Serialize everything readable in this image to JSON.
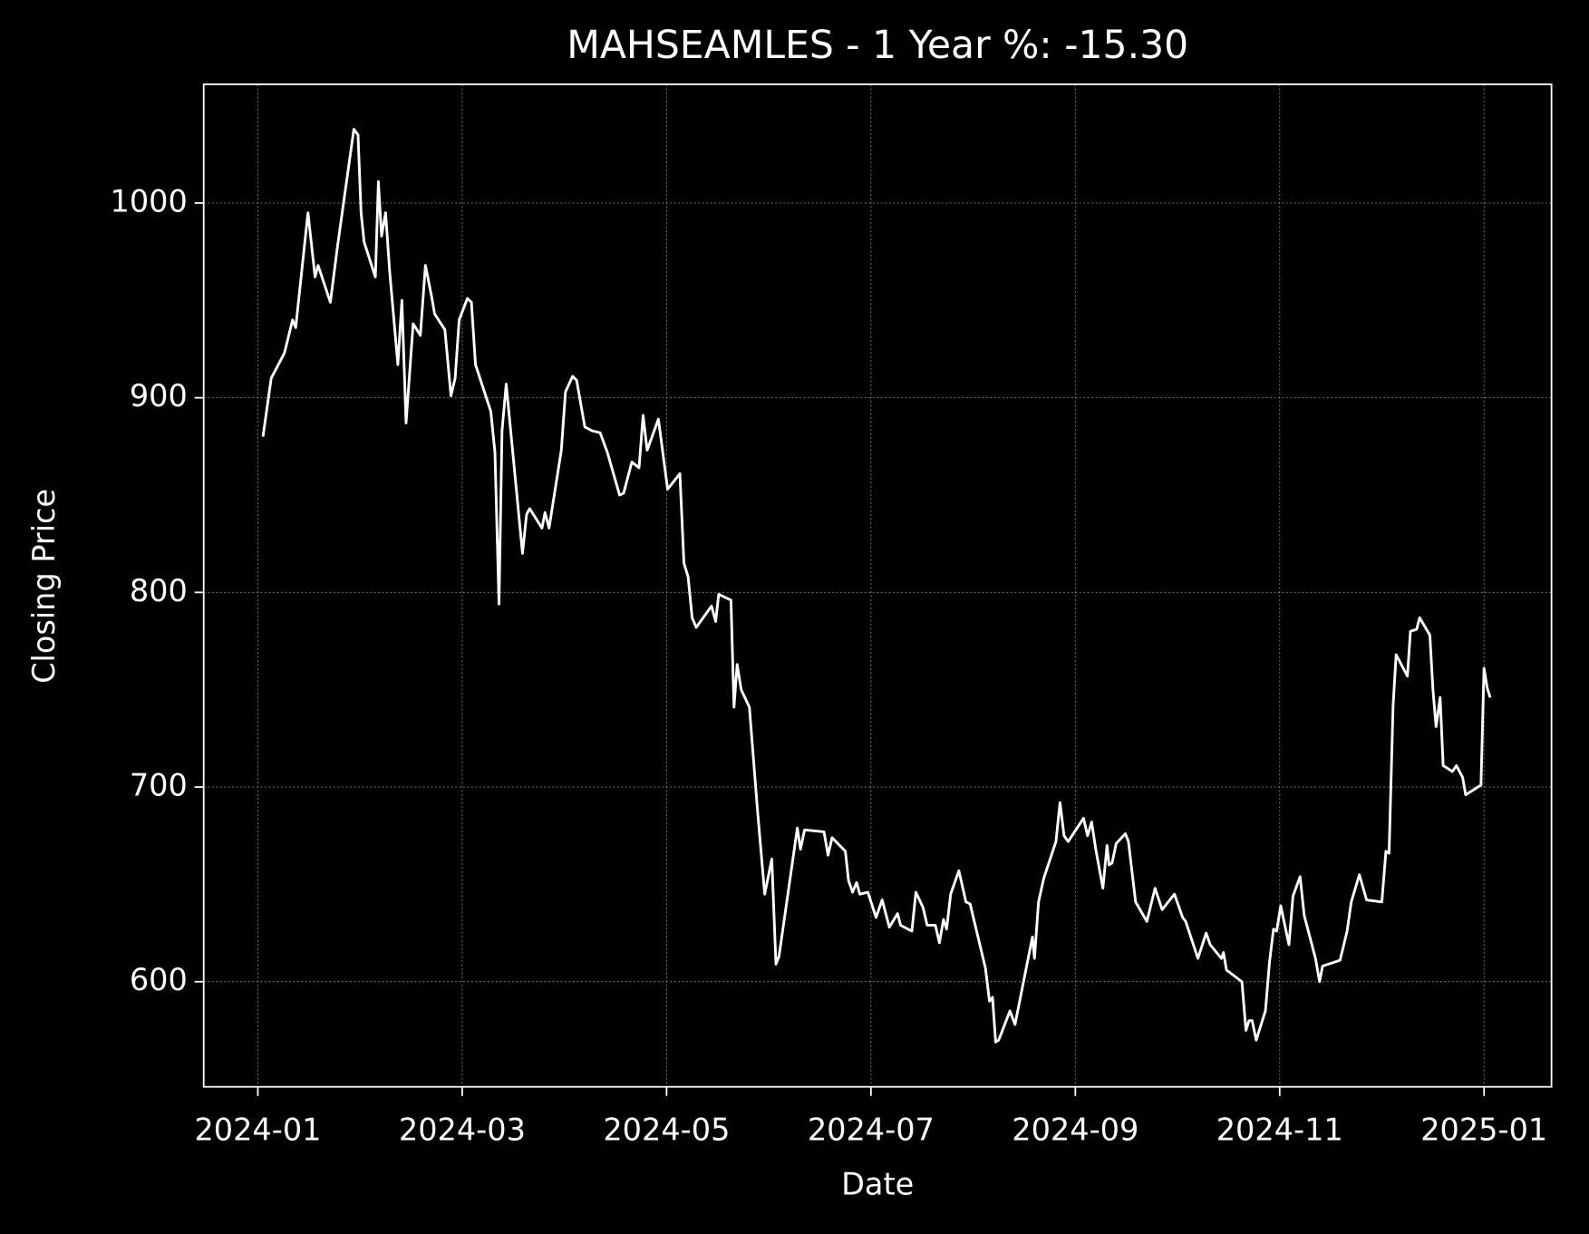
{
  "chart_data": {
    "type": "line",
    "title": "MAHSEAMLES - 1 Year %: -15.30",
    "x_label": "Date",
    "y_label": "Closing Price",
    "color": "#ffffff",
    "grid": true,
    "xlim": [
      -0.53,
      12.66
    ],
    "ylim": [
      546,
      1061
    ],
    "xticks": [
      {
        "value": 0,
        "label": "2024-01"
      },
      {
        "value": 2,
        "label": "2024-03"
      },
      {
        "value": 4,
        "label": "2024-05"
      },
      {
        "value": 6,
        "label": "2024-07"
      },
      {
        "value": 8,
        "label": "2024-09"
      },
      {
        "value": 10,
        "label": "2024-11"
      },
      {
        "value": 12,
        "label": "2025-01"
      }
    ],
    "yticks": [
      600,
      700,
      800,
      900,
      1000
    ],
    "x": [
      0.05,
      0.13,
      0.26,
      0.34,
      0.37,
      0.49,
      0.56,
      0.59,
      0.71,
      0.78,
      0.94,
      0.98,
      1.01,
      1.04,
      1.15,
      1.18,
      1.21,
      1.25,
      1.29,
      1.37,
      1.41,
      1.45,
      1.52,
      1.59,
      1.64,
      1.7,
      1.73,
      1.83,
      1.89,
      1.93,
      1.97,
      2.05,
      2.09,
      2.13,
      2.28,
      2.32,
      2.36,
      2.39,
      2.43,
      2.59,
      2.63,
      2.66,
      2.78,
      2.81,
      2.85,
      2.97,
      3.01,
      3.08,
      3.12,
      3.2,
      3.27,
      3.35,
      3.42,
      3.54,
      3.58,
      3.66,
      3.73,
      3.77,
      3.81,
      3.92,
      4.01,
      4.13,
      4.17,
      4.21,
      4.25,
      4.29,
      4.44,
      4.48,
      4.51,
      4.63,
      4.66,
      4.69,
      4.73,
      4.81,
      4.89,
      4.96,
      5.03,
      5.07,
      5.1,
      5.28,
      5.31,
      5.35,
      5.54,
      5.58,
      5.62,
      5.75,
      5.78,
      5.82,
      5.86,
      5.89,
      5.97,
      6.05,
      6.11,
      6.18,
      6.26,
      6.29,
      6.4,
      6.44,
      6.51,
      6.55,
      6.63,
      6.67,
      6.71,
      6.74,
      6.78,
      6.86,
      6.93,
      6.97,
      7.12,
      7.16,
      7.19,
      7.22,
      7.25,
      7.36,
      7.41,
      7.58,
      7.6,
      7.64,
      7.69,
      7.81,
      7.85,
      7.89,
      7.93,
      8.08,
      8.12,
      8.16,
      8.2,
      8.27,
      8.31,
      8.33,
      8.36,
      8.4,
      8.49,
      8.52,
      8.59,
      8.7,
      8.78,
      8.85,
      8.97,
      9.05,
      9.08,
      9.2,
      9.28,
      9.32,
      9.43,
      9.45,
      9.48,
      9.63,
      9.67,
      9.7,
      9.73,
      9.77,
      9.86,
      9.9,
      9.94,
      9.97,
      10.01,
      10.09,
      10.13,
      10.2,
      10.24,
      10.35,
      10.39,
      10.42,
      10.59,
      10.66,
      10.7,
      10.78,
      10.85,
      11.0,
      11.04,
      11.07,
      11.11,
      11.14,
      11.25,
      11.28,
      11.34,
      11.37,
      11.47,
      11.5,
      11.53,
      11.57,
      11.6,
      11.69,
      11.73,
      11.79,
      11.82,
      11.97,
      12.0,
      12.03,
      12.06
    ],
    "values": [
      880,
      910,
      923,
      940,
      936,
      995,
      962,
      968,
      949,
      978,
      1038,
      1035,
      995,
      980,
      962,
      1011,
      983,
      995,
      965,
      917,
      950,
      887,
      938,
      932,
      968,
      952,
      943,
      935,
      901,
      910,
      940,
      951,
      949,
      917,
      893,
      872,
      794,
      883,
      907,
      820,
      840,
      843,
      833,
      841,
      833,
      873,
      903,
      911,
      909,
      885,
      883,
      882,
      872,
      850,
      851,
      867,
      864,
      891,
      873,
      889,
      853,
      861,
      815,
      808,
      787,
      782,
      793,
      785,
      799,
      796,
      741,
      763,
      750,
      741,
      688,
      645,
      663,
      609,
      613,
      679,
      668,
      678,
      677,
      665,
      674,
      667,
      652,
      646,
      651,
      645,
      646,
      633,
      642,
      628,
      635,
      629,
      626,
      646,
      638,
      629,
      629,
      620,
      632,
      627,
      645,
      657,
      641,
      640,
      607,
      590,
      592,
      569,
      570,
      585,
      578,
      623,
      612,
      641,
      653,
      672,
      692,
      675,
      672,
      684,
      675,
      682,
      668,
      648,
      670,
      660,
      661,
      671,
      676,
      672,
      641,
      631,
      648,
      637,
      645,
      633,
      631,
      612,
      625,
      619,
      612,
      615,
      606,
      600,
      575,
      580,
      580,
      570,
      585,
      610,
      627,
      626,
      639,
      619,
      644,
      654,
      634,
      612,
      600,
      608,
      611,
      626,
      641,
      655,
      642,
      641,
      667,
      666,
      742,
      768,
      757,
      780,
      781,
      787,
      778,
      750,
      731,
      746,
      711,
      708,
      711,
      705,
      696,
      701,
      761,
      751,
      746
    ]
  }
}
